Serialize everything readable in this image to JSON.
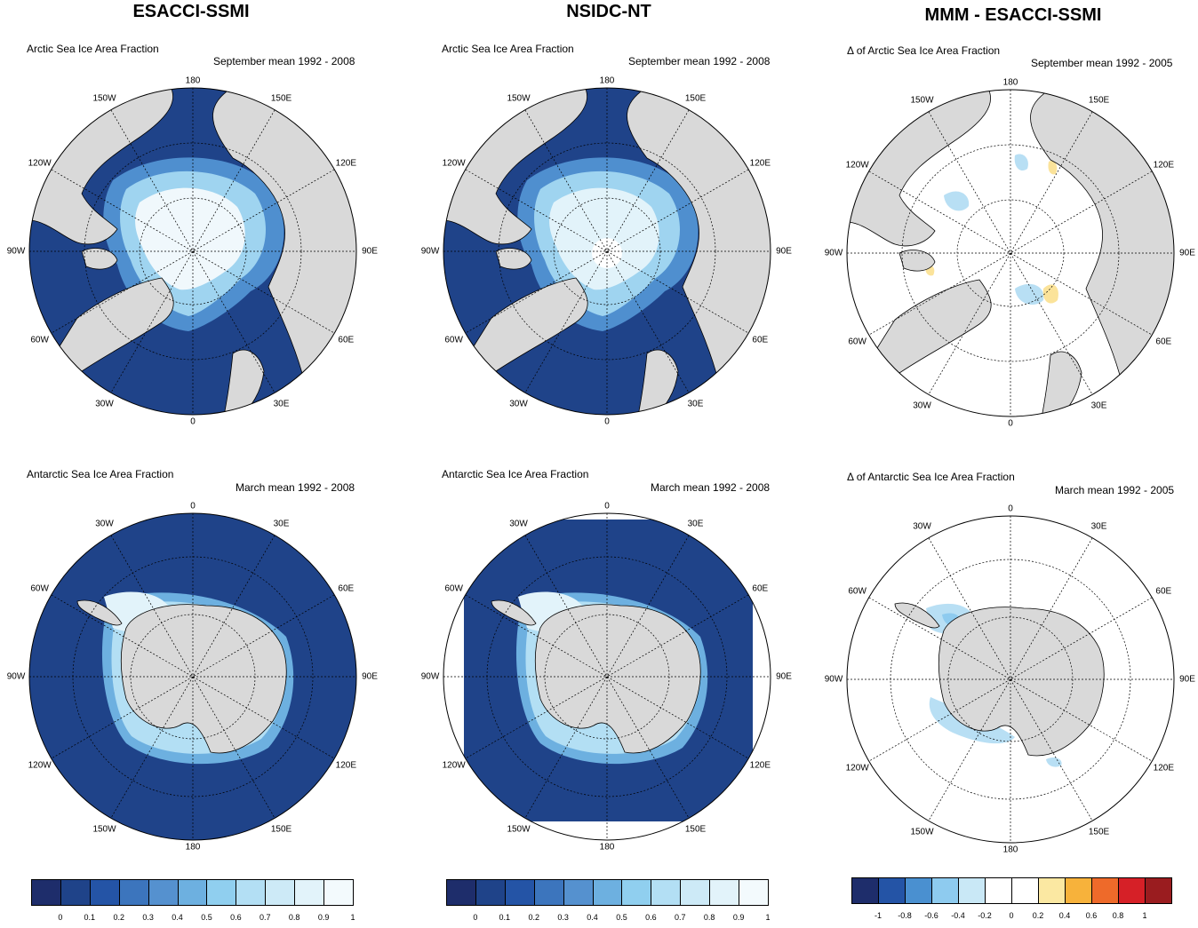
{
  "columns": [
    {
      "title": "ESACCI-SSMI"
    },
    {
      "title": "NSIDC-NT"
    },
    {
      "title": "MMM - ESACCI-SSMI"
    }
  ],
  "panels": {
    "r0c0": {
      "title": "Arctic Sea Ice Area Fraction",
      "period": "September mean 1992 - 2008"
    },
    "r0c1": {
      "title": "Arctic Sea Ice Area Fraction",
      "period": "September mean 1992 - 2008"
    },
    "r0c2": {
      "title": "Δ of Arctic Sea Ice Area Fraction",
      "period": "September mean 1992 - 2005"
    },
    "r1c0": {
      "title": "Antarctic Sea Ice Area Fraction",
      "period": "March mean 1992 - 2008"
    },
    "r1c1": {
      "title": "Antarctic Sea Ice Area Fraction",
      "period": "March mean 1992 - 2008"
    },
    "r1c2": {
      "title": "Δ of Antarctic Sea Ice Area Fraction",
      "period": "March mean 1992 - 2005"
    }
  },
  "arctic_lon_labels": {
    "top": "180",
    "ne1": "150E",
    "ne2": "120E",
    "e": "90E",
    "se1": "60E",
    "se2": "30E",
    "bottom": "0",
    "sw2": "30W",
    "sw1": "60W",
    "w": "90W",
    "nw2": "120W",
    "nw1": "150W"
  },
  "antarctic_lon_labels": {
    "top": "0",
    "ne1": "30E",
    "ne2": "60E",
    "e": "90E",
    "se1": "120E",
    "se2": "150E",
    "bottom": "180",
    "sw2": "150W",
    "sw1": "120W",
    "w": "90W",
    "nw2": "60W",
    "nw1": "30W"
  },
  "colorbar_fraction": {
    "colors": [
      "#1e2d6b",
      "#1f4389",
      "#2454a6",
      "#3c75bd",
      "#5591cf",
      "#6db0e0",
      "#90cfef",
      "#b3dff4",
      "#cdeaf7",
      "#e2f3fa",
      "#f3fafd"
    ],
    "ticks": [
      "0",
      "0.1",
      "0.2",
      "0.3",
      "0.4",
      "0.5",
      "0.6",
      "0.7",
      "0.8",
      "0.9",
      "1"
    ]
  },
  "colorbar_delta": {
    "colors": [
      "#1e2d6b",
      "#2454a6",
      "#4a90d0",
      "#8ecbef",
      "#c9e8f6",
      "#ffffff",
      "#ffffff",
      "#fbe8a2",
      "#f7b23b",
      "#ee6a2a",
      "#d62027",
      "#9a1c1f"
    ],
    "ticks": [
      "-1",
      "-0.8",
      "-0.6",
      "-0.4",
      "-0.2",
      "0",
      "0.2",
      "0.4",
      "0.6",
      "0.8",
      "1"
    ]
  },
  "colors": {
    "ocean_ice_free": "#1f4389",
    "land": "#d9d9d9",
    "ice_high": "#f0f8fc",
    "ice_mid": "#9fd4f0",
    "ice_low": "#4f8fcf",
    "delta_zero": "#ffffff",
    "delta_neg": "#b8dff4",
    "delta_pos": "#fbe39a"
  }
}
